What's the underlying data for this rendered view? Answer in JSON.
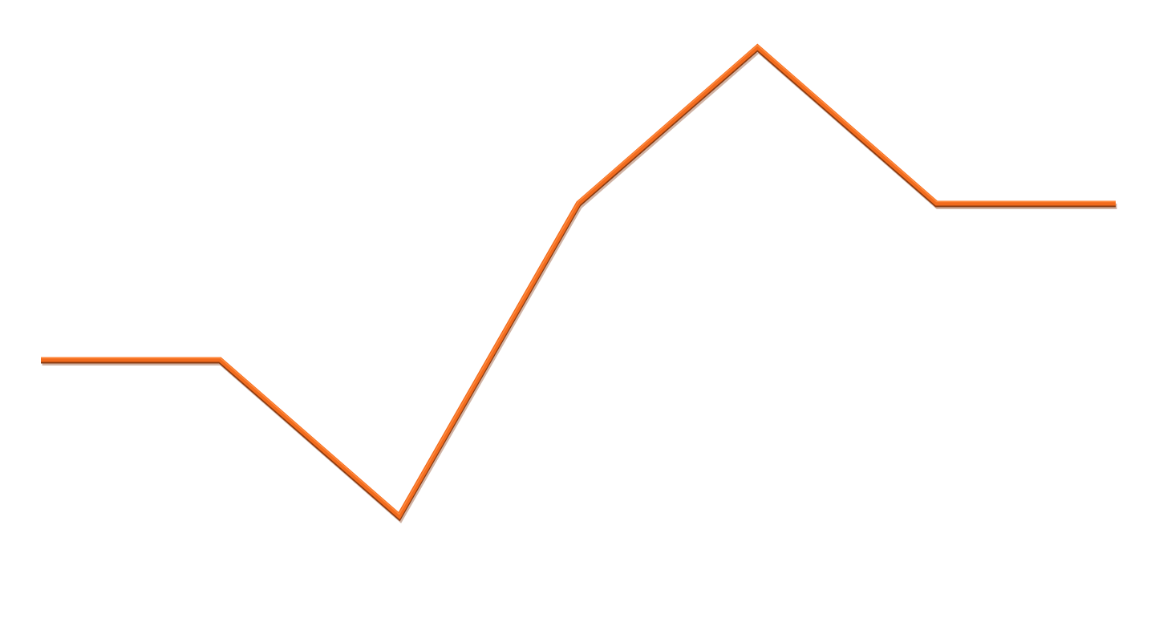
{
  "chart_data": {
    "type": "line",
    "x": [
      0,
      1,
      2,
      3,
      4,
      5,
      6
    ],
    "series": [
      {
        "values": [
          0,
          0,
          -0.5,
          0.5,
          1.0,
          0.5,
          0.5
        ]
      }
    ],
    "ylim": [
      -0.84,
      1.15
    ],
    "grid": false,
    "colors": {
      "line": "#f26b1d",
      "shadow": "#a9745b"
    }
  }
}
